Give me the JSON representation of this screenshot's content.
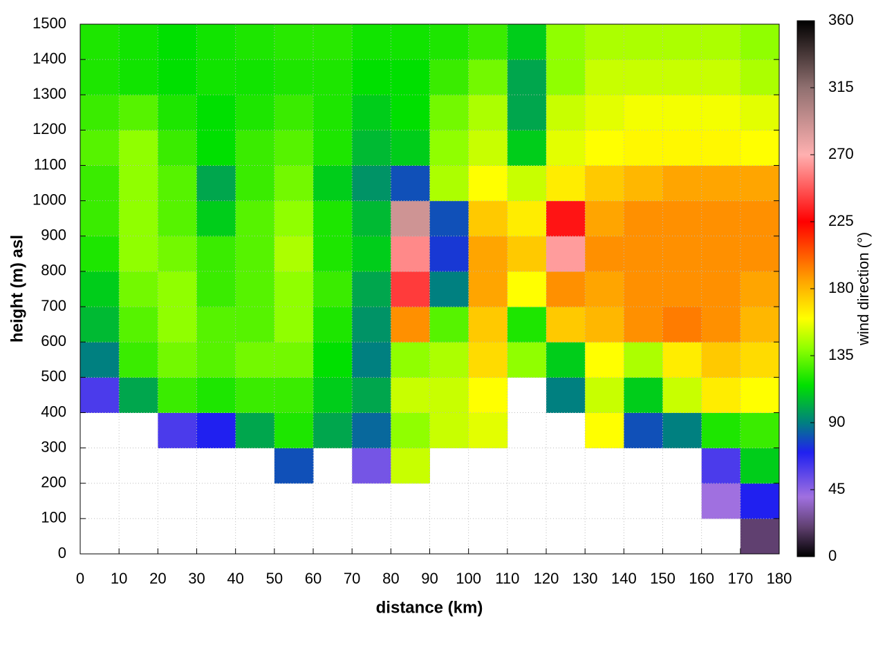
{
  "chart_data": {
    "type": "heatmap",
    "xlabel": "distance (km)",
    "ylabel": "height (m) asl",
    "colorbar_label": "wind direction (°)",
    "xbins": [
      0,
      10,
      20,
      30,
      40,
      50,
      60,
      70,
      80,
      90,
      100,
      110,
      120,
      130,
      140,
      150,
      160,
      170,
      180
    ],
    "ybins": [
      0,
      100,
      200,
      300,
      400,
      500,
      600,
      700,
      800,
      900,
      1000,
      1100,
      1200,
      1300,
      1400,
      1500
    ],
    "xlim": [
      0,
      180
    ],
    "xticks": [
      0,
      10,
      20,
      30,
      40,
      50,
      60,
      70,
      80,
      90,
      100,
      110,
      120,
      130,
      140,
      150,
      160,
      170,
      180
    ],
    "ylim": [
      0,
      1500
    ],
    "yticks": [
      0,
      100,
      200,
      300,
      400,
      500,
      600,
      700,
      800,
      900,
      1000,
      1100,
      1200,
      1300,
      1400,
      1500
    ],
    "clim": [
      0,
      360
    ],
    "cticks": [
      0,
      45,
      90,
      135,
      180,
      225,
      270,
      315,
      360
    ],
    "grid": true,
    "colorscale": [
      [
        0,
        "#000000"
      ],
      [
        20,
        "#604070"
      ],
      [
        40,
        "#a070e0"
      ],
      [
        70,
        "#2020f0"
      ],
      [
        90,
        "#008080"
      ],
      [
        115,
        "#00e000"
      ],
      [
        140,
        "#90ff00"
      ],
      [
        160,
        "#ffff00"
      ],
      [
        185,
        "#ffa500"
      ],
      [
        225,
        "#ff0000"
      ],
      [
        270,
        "#ffb0b0"
      ],
      [
        315,
        "#907070"
      ],
      [
        360,
        "#000000"
      ]
    ],
    "z": [
      [
        null,
        null,
        null,
        null,
        null,
        null,
        null,
        null,
        null,
        null,
        null,
        null,
        null,
        null,
        null,
        null,
        null,
        20
      ],
      [
        null,
        null,
        null,
        null,
        null,
        null,
        null,
        null,
        null,
        null,
        null,
        null,
        null,
        null,
        null,
        null,
        40,
        70
      ],
      [
        null,
        null,
        null,
        null,
        null,
        80,
        null,
        50,
        150,
        null,
        null,
        null,
        null,
        null,
        null,
        null,
        60,
        110
      ],
      [
        null,
        null,
        60,
        70,
        100,
        120,
        100,
        85,
        140,
        150,
        155,
        null,
        null,
        160,
        80,
        90,
        120,
        125
      ],
      [
        60,
        100,
        125,
        120,
        125,
        125,
        110,
        100,
        150,
        150,
        160,
        null,
        90,
        150,
        110,
        150,
        165,
        160
      ],
      [
        90,
        125,
        135,
        130,
        135,
        135,
        115,
        90,
        140,
        145,
        170,
        140,
        110,
        160,
        145,
        165,
        175,
        170
      ],
      [
        105,
        130,
        140,
        130,
        130,
        140,
        120,
        95,
        190,
        130,
        175,
        120,
        175,
        180,
        190,
        195,
        190,
        180
      ],
      [
        110,
        135,
        140,
        125,
        130,
        140,
        125,
        100,
        240,
        90,
        185,
        160,
        190,
        185,
        190,
        190,
        190,
        185
      ],
      [
        120,
        140,
        135,
        125,
        130,
        145,
        120,
        110,
        260,
        75,
        185,
        175,
        265,
        190,
        190,
        190,
        190,
        190
      ],
      [
        125,
        140,
        130,
        110,
        130,
        140,
        120,
        105,
        290,
        80,
        175,
        165,
        230,
        185,
        190,
        190,
        190,
        190
      ],
      [
        125,
        140,
        130,
        100,
        125,
        135,
        110,
        95,
        80,
        145,
        160,
        150,
        165,
        175,
        180,
        185,
        185,
        185
      ],
      [
        130,
        140,
        125,
        115,
        125,
        130,
        120,
        105,
        110,
        140,
        150,
        110,
        155,
        160,
        162,
        162,
        162,
        160
      ],
      [
        125,
        130,
        120,
        115,
        120,
        125,
        120,
        110,
        115,
        135,
        145,
        100,
        150,
        155,
        158,
        158,
        158,
        155
      ],
      [
        120,
        118,
        115,
        118,
        118,
        120,
        120,
        115,
        115,
        125,
        135,
        100,
        140,
        150,
        150,
        150,
        150,
        145
      ],
      [
        120,
        118,
        115,
        118,
        120,
        122,
        122,
        118,
        118,
        120,
        125,
        110,
        140,
        145,
        145,
        145,
        145,
        140
      ]
    ]
  }
}
